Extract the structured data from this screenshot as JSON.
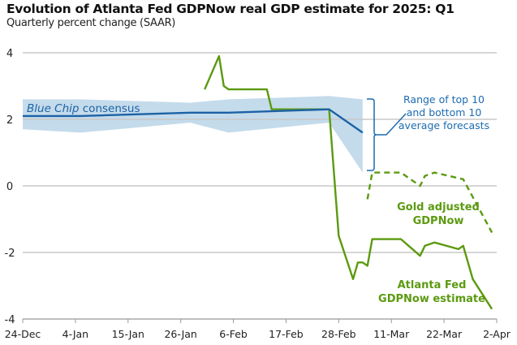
{
  "title": "Evolution of Atlanta Fed GDPNow real GDP estimate for 2025: Q1",
  "subtitle": "Quarterly percent change (SAAR)",
  "colors": {
    "gdpnow": "#5b9a10",
    "consensus": "#1c62a6",
    "band": "#c4dbeb",
    "grid": "#c8c8c8",
    "annotation": "#1c6cb0"
  },
  "chart_data": {
    "type": "line",
    "title": "Evolution of Atlanta Fed GDPNow real GDP estimate for 2025: Q1",
    "ylabel": "Quarterly percent change (SAAR)",
    "xlim": [
      "2024-12-24",
      "2025-04-02"
    ],
    "ylim": [
      -4,
      4
    ],
    "yticks": [
      -4,
      -2,
      0,
      2,
      4
    ],
    "ytick_labels": [
      "-4",
      "-2",
      "0",
      "2",
      "4"
    ],
    "xticks": [
      "2024-12-24",
      "2025-01-04",
      "2025-01-15",
      "2025-01-26",
      "2025-02-06",
      "2025-02-17",
      "2025-02-28",
      "2025-03-11",
      "2025-03-22",
      "2025-04-02"
    ],
    "xtick_labels": [
      "24-Dec",
      "4-Jan",
      "15-Jan",
      "26-Jan",
      "6-Feb",
      "17-Feb",
      "28-Feb",
      "11-Mar",
      "22-Mar",
      "2-Apr"
    ],
    "grid": true,
    "series": [
      {
        "name": "Atlanta Fed GDPNow estimate",
        "style": "solid",
        "x": [
          "2025-01-31",
          "2025-02-03",
          "2025-02-04",
          "2025-02-05",
          "2025-02-13",
          "2025-02-14",
          "2025-02-26",
          "2025-02-28",
          "2025-03-03",
          "2025-03-04",
          "2025-03-05",
          "2025-03-06",
          "2025-03-07",
          "2025-03-13",
          "2025-03-17",
          "2025-03-18",
          "2025-03-20",
          "2025-03-25",
          "2025-03-26",
          "2025-03-28",
          "2025-04-01"
        ],
        "y": [
          2.9,
          3.9,
          3.0,
          2.9,
          2.9,
          2.3,
          2.3,
          -1.5,
          -2.8,
          -2.3,
          -2.3,
          -2.4,
          -1.6,
          -1.6,
          -2.1,
          -1.8,
          -1.7,
          -1.9,
          -1.8,
          -2.8,
          -3.7
        ]
      },
      {
        "name": "Gold adjusted GDPNow",
        "style": "dashed",
        "x": [
          "2025-03-06",
          "2025-03-07",
          "2025-03-13",
          "2025-03-17",
          "2025-03-18",
          "2025-03-20",
          "2025-03-26",
          "2025-04-01"
        ],
        "y": [
          -0.4,
          0.4,
          0.4,
          0.0,
          0.3,
          0.4,
          0.2,
          -1.4
        ]
      },
      {
        "name": "Blue Chip consensus",
        "style": "solid",
        "x": [
          "2024-12-24",
          "2025-01-05",
          "2025-01-28",
          "2025-02-05",
          "2025-02-26",
          "2025-03-05"
        ],
        "y": [
          2.1,
          2.1,
          2.2,
          2.2,
          2.3,
          1.6
        ]
      }
    ],
    "band": {
      "name": "Range of top 10 and bottom 10 average forecasts",
      "x": [
        "2024-12-24",
        "2025-01-05",
        "2025-01-28",
        "2025-02-05",
        "2025-02-26",
        "2025-03-05"
      ],
      "upper": [
        2.6,
        2.6,
        2.5,
        2.6,
        2.7,
        2.6
      ],
      "lower": [
        1.7,
        1.6,
        1.9,
        1.6,
        1.9,
        0.4
      ]
    }
  },
  "annotations": {
    "consensus_italic": "Blue Chip",
    "consensus_rest": " consensus",
    "range": [
      "Range of top 10",
      "and bottom 10",
      "average forecasts"
    ],
    "gold": [
      "Gold adjusted",
      "GDPNow"
    ],
    "gdpnow": [
      "Atlanta Fed",
      "GDPNow estimate"
    ]
  }
}
